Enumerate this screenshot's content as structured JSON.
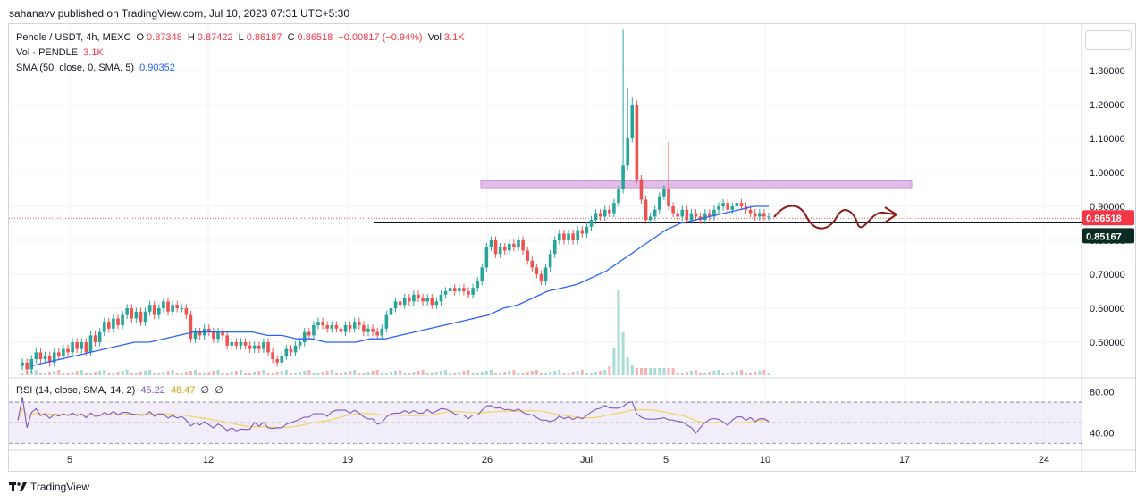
{
  "publisher": "sahanavv published on TradingView.com, Jul 10, 2023 07:31 UTC+5:30",
  "legend": {
    "title": "Pendle / USDT, 4h, MEXC",
    "o_label": "O",
    "o": "0.87348",
    "h_label": "H",
    "h": "0.87422",
    "l_label": "L",
    "l": "0.86187",
    "c_label": "C",
    "c": "0.86518",
    "change": "−0.00817 (−0.94%)",
    "vol_label": "Vol",
    "vol": "3.1K",
    "vol_line_label": "Vol · PENDLE",
    "vol_line_value": "3.1K",
    "sma_label": "SMA (50, close, 0, SMA, 5)",
    "sma_value": "0.90352"
  },
  "rsi_legend": {
    "label": "RSI (14, close, SMA, 14, 2)",
    "rsi": "45.22",
    "rsi_ma": "48.47",
    "v1": "∅",
    "v2": "∅"
  },
  "brand": "TradingView",
  "colors": {
    "up": "#26a69a",
    "down": "#ef5350",
    "sma": "#2962ff",
    "zone": "#e1bee7",
    "rsi": "#7e57c2",
    "rsi_ma": "#f2d35b",
    "arrow": "#8b1a1a"
  },
  "chart_data": [
    {
      "type": "candlestick",
      "pair": "Pendle / USDT",
      "interval": "4h",
      "x_tick_labels": [
        "5",
        "12",
        "19",
        "26",
        "Jul",
        "5",
        "10",
        "17",
        "24"
      ],
      "y_tick_labels": [
        "1.30000",
        "1.20000",
        "1.10000",
        "1.00000",
        "0.90000",
        "0.80000",
        "0.70000",
        "0.60000",
        "0.50000"
      ],
      "ylim": [
        0.41,
        1.42
      ],
      "last_price": "0.86518",
      "support_level": "0.85167",
      "resistance_zone": [
        0.955,
        0.975
      ],
      "closes": [
        0.43,
        0.44,
        0.42,
        0.45,
        0.47,
        0.45,
        0.46,
        0.44,
        0.47,
        0.46,
        0.48,
        0.47,
        0.5,
        0.48,
        0.5,
        0.47,
        0.52,
        0.5,
        0.53,
        0.56,
        0.54,
        0.57,
        0.55,
        0.58,
        0.6,
        0.57,
        0.59,
        0.56,
        0.59,
        0.61,
        0.58,
        0.6,
        0.62,
        0.59,
        0.61,
        0.6,
        0.6,
        0.58,
        0.51,
        0.53,
        0.52,
        0.54,
        0.53,
        0.51,
        0.53,
        0.52,
        0.49,
        0.5,
        0.49,
        0.5,
        0.49,
        0.48,
        0.49,
        0.48,
        0.5,
        0.47,
        0.45,
        0.44,
        0.46,
        0.48,
        0.47,
        0.49,
        0.5,
        0.53,
        0.52,
        0.55,
        0.56,
        0.55,
        0.54,
        0.55,
        0.54,
        0.53,
        0.55,
        0.54,
        0.56,
        0.55,
        0.53,
        0.54,
        0.53,
        0.52,
        0.54,
        0.58,
        0.6,
        0.62,
        0.61,
        0.63,
        0.62,
        0.64,
        0.63,
        0.62,
        0.63,
        0.61,
        0.62,
        0.64,
        0.65,
        0.66,
        0.65,
        0.66,
        0.65,
        0.64,
        0.66,
        0.68,
        0.72,
        0.78,
        0.8,
        0.76,
        0.78,
        0.77,
        0.79,
        0.78,
        0.8,
        0.77,
        0.74,
        0.72,
        0.7,
        0.68,
        0.72,
        0.76,
        0.8,
        0.82,
        0.8,
        0.82,
        0.8,
        0.83,
        0.82,
        0.84,
        0.86,
        0.88,
        0.87,
        0.89,
        0.88,
        0.91,
        0.95,
        1.02,
        1.1,
        1.2,
        0.98,
        0.92,
        0.86,
        0.87,
        0.89,
        0.93,
        0.95,
        0.9,
        0.88,
        0.87,
        0.89,
        0.86,
        0.88,
        0.87,
        0.86,
        0.88,
        0.87,
        0.89,
        0.9,
        0.91,
        0.89,
        0.9,
        0.91,
        0.9,
        0.89,
        0.88,
        0.87,
        0.88,
        0.87,
        0.87
      ],
      "sma_50": [
        0.43,
        0.44,
        0.45,
        0.46,
        0.47,
        0.48,
        0.49,
        0.5,
        0.5,
        0.51,
        0.52,
        0.53,
        0.53,
        0.53,
        0.53,
        0.53,
        0.52,
        0.52,
        0.51,
        0.51,
        0.5,
        0.5,
        0.5,
        0.51,
        0.51,
        0.52,
        0.53,
        0.54,
        0.55,
        0.56,
        0.57,
        0.58,
        0.6,
        0.61,
        0.63,
        0.65,
        0.66,
        0.67,
        0.69,
        0.71,
        0.74,
        0.77,
        0.8,
        0.83,
        0.85,
        0.86,
        0.87,
        0.88,
        0.89,
        0.9,
        0.9
      ],
      "volume_label": "3.1K"
    },
    {
      "type": "line",
      "name": "RSI (14, close, SMA, 14, 2)",
      "y_tick_labels": [
        "80.00",
        "40.00"
      ],
      "ylim": [
        25,
        90
      ],
      "bands": [
        70,
        50,
        30
      ],
      "rsi_last": "45.22",
      "rsi_ma_last": "48.47"
    }
  ]
}
